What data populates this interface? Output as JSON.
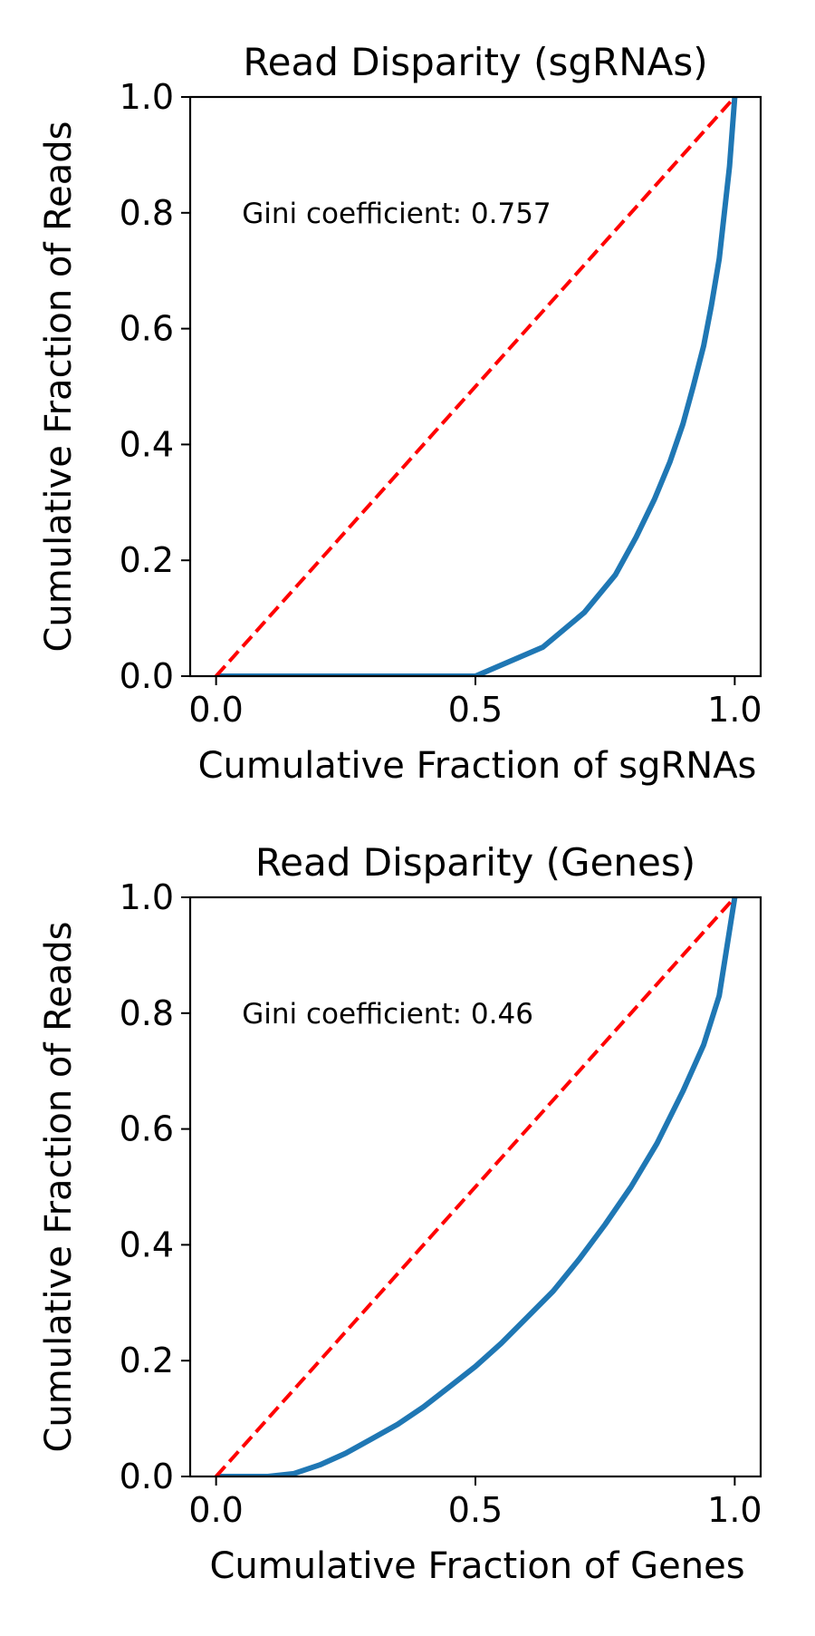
{
  "chart_data": [
    {
      "type": "line",
      "title": "Read Disparity (sgRNAs)",
      "xlabel": "Cumulative Fraction of sgRNAs",
      "ylabel": "Cumulative Fraction of Reads",
      "annotation": "Gini coefficient: 0.757",
      "gini": 0.757,
      "xlim": [
        -0.05,
        1.05
      ],
      "ylim": [
        0,
        1.0
      ],
      "xticks": [
        "0.0",
        "0.5",
        "1.0"
      ],
      "yticks": [
        "0.0",
        "0.2",
        "0.4",
        "0.6",
        "0.8",
        "1.0"
      ],
      "grid": false,
      "series": [
        {
          "color": "#1f77b4",
          "style": "solid",
          "x": [
            0,
            0.5,
            0.63,
            0.71,
            0.77,
            0.81,
            0.845,
            0.875,
            0.9,
            0.92,
            0.94,
            0.955,
            0.97,
            0.98,
            0.99,
            1.0
          ],
          "y": [
            0,
            0,
            0.05,
            0.11,
            0.175,
            0.24,
            0.305,
            0.37,
            0.435,
            0.5,
            0.57,
            0.64,
            0.72,
            0.8,
            0.88,
            1.0
          ]
        },
        {
          "color": "#ff0000",
          "style": "dashed",
          "x": [
            0,
            1
          ],
          "y": [
            0,
            1
          ]
        }
      ]
    },
    {
      "type": "line",
      "title": "Read Disparity (Genes)",
      "xlabel": "Cumulative Fraction of Genes",
      "ylabel": "Cumulative Fraction of Reads",
      "annotation": "Gini coefficient: 0.46",
      "gini": 0.46,
      "xlim": [
        -0.05,
        1.05
      ],
      "ylim": [
        0,
        1.0
      ],
      "xticks": [
        "0.0",
        "0.5",
        "1.0"
      ],
      "yticks": [
        "0.0",
        "0.2",
        "0.4",
        "0.6",
        "0.8",
        "1.0"
      ],
      "grid": false,
      "series": [
        {
          "color": "#1f77b4",
          "style": "solid",
          "x": [
            0,
            0.1,
            0.15,
            0.2,
            0.25,
            0.3,
            0.35,
            0.4,
            0.45,
            0.5,
            0.55,
            0.6,
            0.65,
            0.7,
            0.75,
            0.8,
            0.85,
            0.9,
            0.94,
            0.97,
            1.0
          ],
          "y": [
            0,
            0,
            0.005,
            0.02,
            0.04,
            0.065,
            0.09,
            0.12,
            0.155,
            0.19,
            0.23,
            0.275,
            0.32,
            0.375,
            0.435,
            0.5,
            0.575,
            0.665,
            0.745,
            0.83,
            1.0
          ]
        },
        {
          "color": "#ff0000",
          "style": "dashed",
          "x": [
            0,
            1
          ],
          "y": [
            0,
            1
          ]
        }
      ]
    }
  ]
}
